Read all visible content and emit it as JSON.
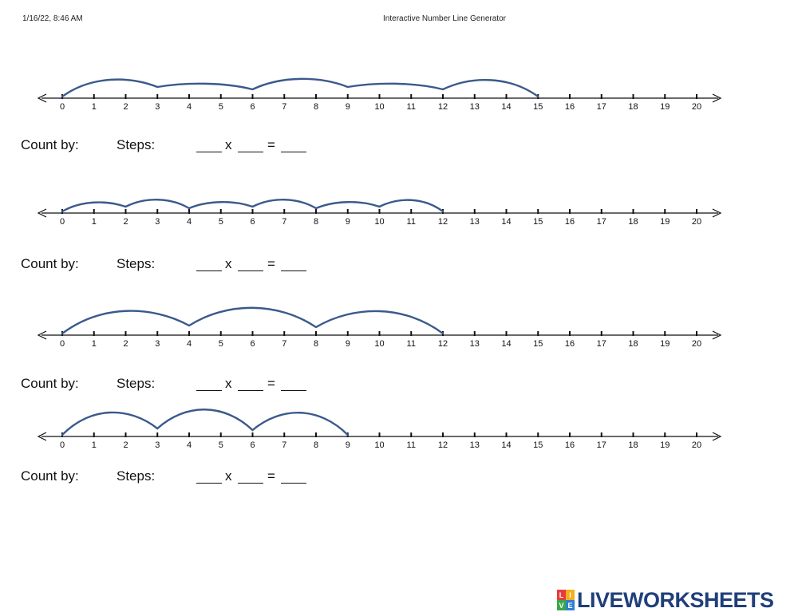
{
  "header": {
    "datetime": "1/16/22, 8:46 AM",
    "title": "Interactive Number Line Generator"
  },
  "tick_labels": [
    "0",
    "1",
    "2",
    "3",
    "4",
    "5",
    "6",
    "7",
    "8",
    "9",
    "10",
    "11",
    "12",
    "13",
    "14",
    "15",
    "16",
    "17",
    "18",
    "19",
    "20"
  ],
  "problem_labels": {
    "count_by": "Count by:",
    "steps": "Steps:",
    "times": "x",
    "equals": "="
  },
  "problems": [
    {
      "hops": [
        0,
        3,
        6,
        9,
        12,
        15
      ]
    },
    {
      "hops": [
        0,
        2,
        4,
        6,
        8,
        10,
        12
      ]
    },
    {
      "hops": [
        0,
        4,
        8,
        12
      ]
    },
    {
      "hops": [
        0,
        3,
        6,
        9
      ]
    }
  ],
  "colors": {
    "arc": "#3a5a8c",
    "axis": "#111111"
  },
  "logo": {
    "text": "LIVEWORKSHEETS",
    "mark_letters": [
      "L",
      "I",
      "V",
      "E"
    ],
    "mark_colors": [
      "#e63c3c",
      "#f2b01e",
      "#3aa74a",
      "#2f7fd1"
    ]
  }
}
